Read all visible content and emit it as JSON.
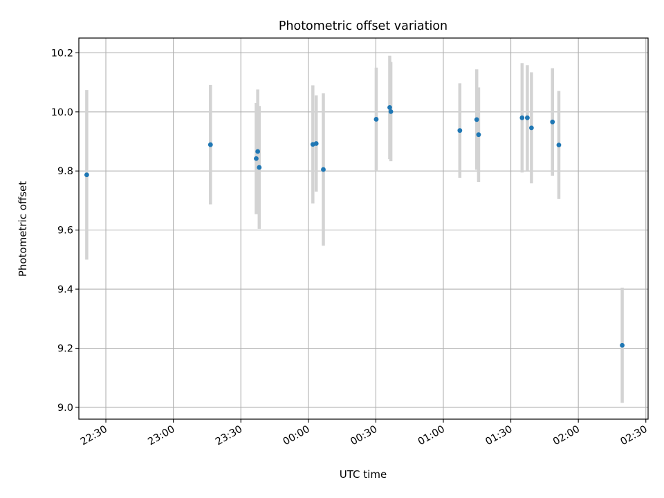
{
  "chart_data": {
    "type": "scatter",
    "title": "Photometric offset variation",
    "xlabel": "UTC time",
    "ylabel": "Photometric offset",
    "xlim": [
      "22:18",
      "02:31"
    ],
    "ylim": [
      8.96,
      10.25
    ],
    "x_ticks": [
      "22:30",
      "23:00",
      "23:30",
      "00:00",
      "00:30",
      "01:00",
      "01:30",
      "02:00",
      "02:30"
    ],
    "y_ticks": [
      9.0,
      9.2,
      9.4,
      9.6,
      9.8,
      10.0,
      10.2
    ],
    "grid": true,
    "marker_color": "#1f77b4",
    "errorbar_color": "#d3d3d3",
    "points": [
      {
        "x": "22:21:30",
        "y": 9.787,
        "err": 0.287
      },
      {
        "x": "23:16:30",
        "y": 9.889,
        "err": 0.202
      },
      {
        "x": "23:36:50",
        "y": 9.842,
        "err": 0.188
      },
      {
        "x": "23:37:30",
        "y": 9.866,
        "err": 0.21
      },
      {
        "x": "23:38:10",
        "y": 9.812,
        "err": 0.208
      },
      {
        "x": "00:02:00",
        "y": 9.89,
        "err": 0.2
      },
      {
        "x": "00:03:30",
        "y": 9.893,
        "err": 0.163
      },
      {
        "x": "00:06:40",
        "y": 9.805,
        "err": 0.258
      },
      {
        "x": "00:30:10",
        "y": 9.975,
        "err": 0.175
      },
      {
        "x": "00:36:10",
        "y": 10.015,
        "err": 0.175
      },
      {
        "x": "00:36:40",
        "y": 10.001,
        "err": 0.168
      },
      {
        "x": "01:07:20",
        "y": 9.937,
        "err": 0.16
      },
      {
        "x": "01:14:50",
        "y": 9.974,
        "err": 0.17
      },
      {
        "x": "01:15:40",
        "y": 9.923,
        "err": 0.16
      },
      {
        "x": "01:35:00",
        "y": 9.98,
        "err": 0.185
      },
      {
        "x": "01:37:20",
        "y": 9.98,
        "err": 0.178
      },
      {
        "x": "01:39:10",
        "y": 9.946,
        "err": 0.188
      },
      {
        "x": "01:48:30",
        "y": 9.966,
        "err": 0.182
      },
      {
        "x": "01:51:20",
        "y": 9.888,
        "err": 0.183
      },
      {
        "x": "02:19:30",
        "y": 9.21,
        "err": 0.195
      }
    ]
  }
}
